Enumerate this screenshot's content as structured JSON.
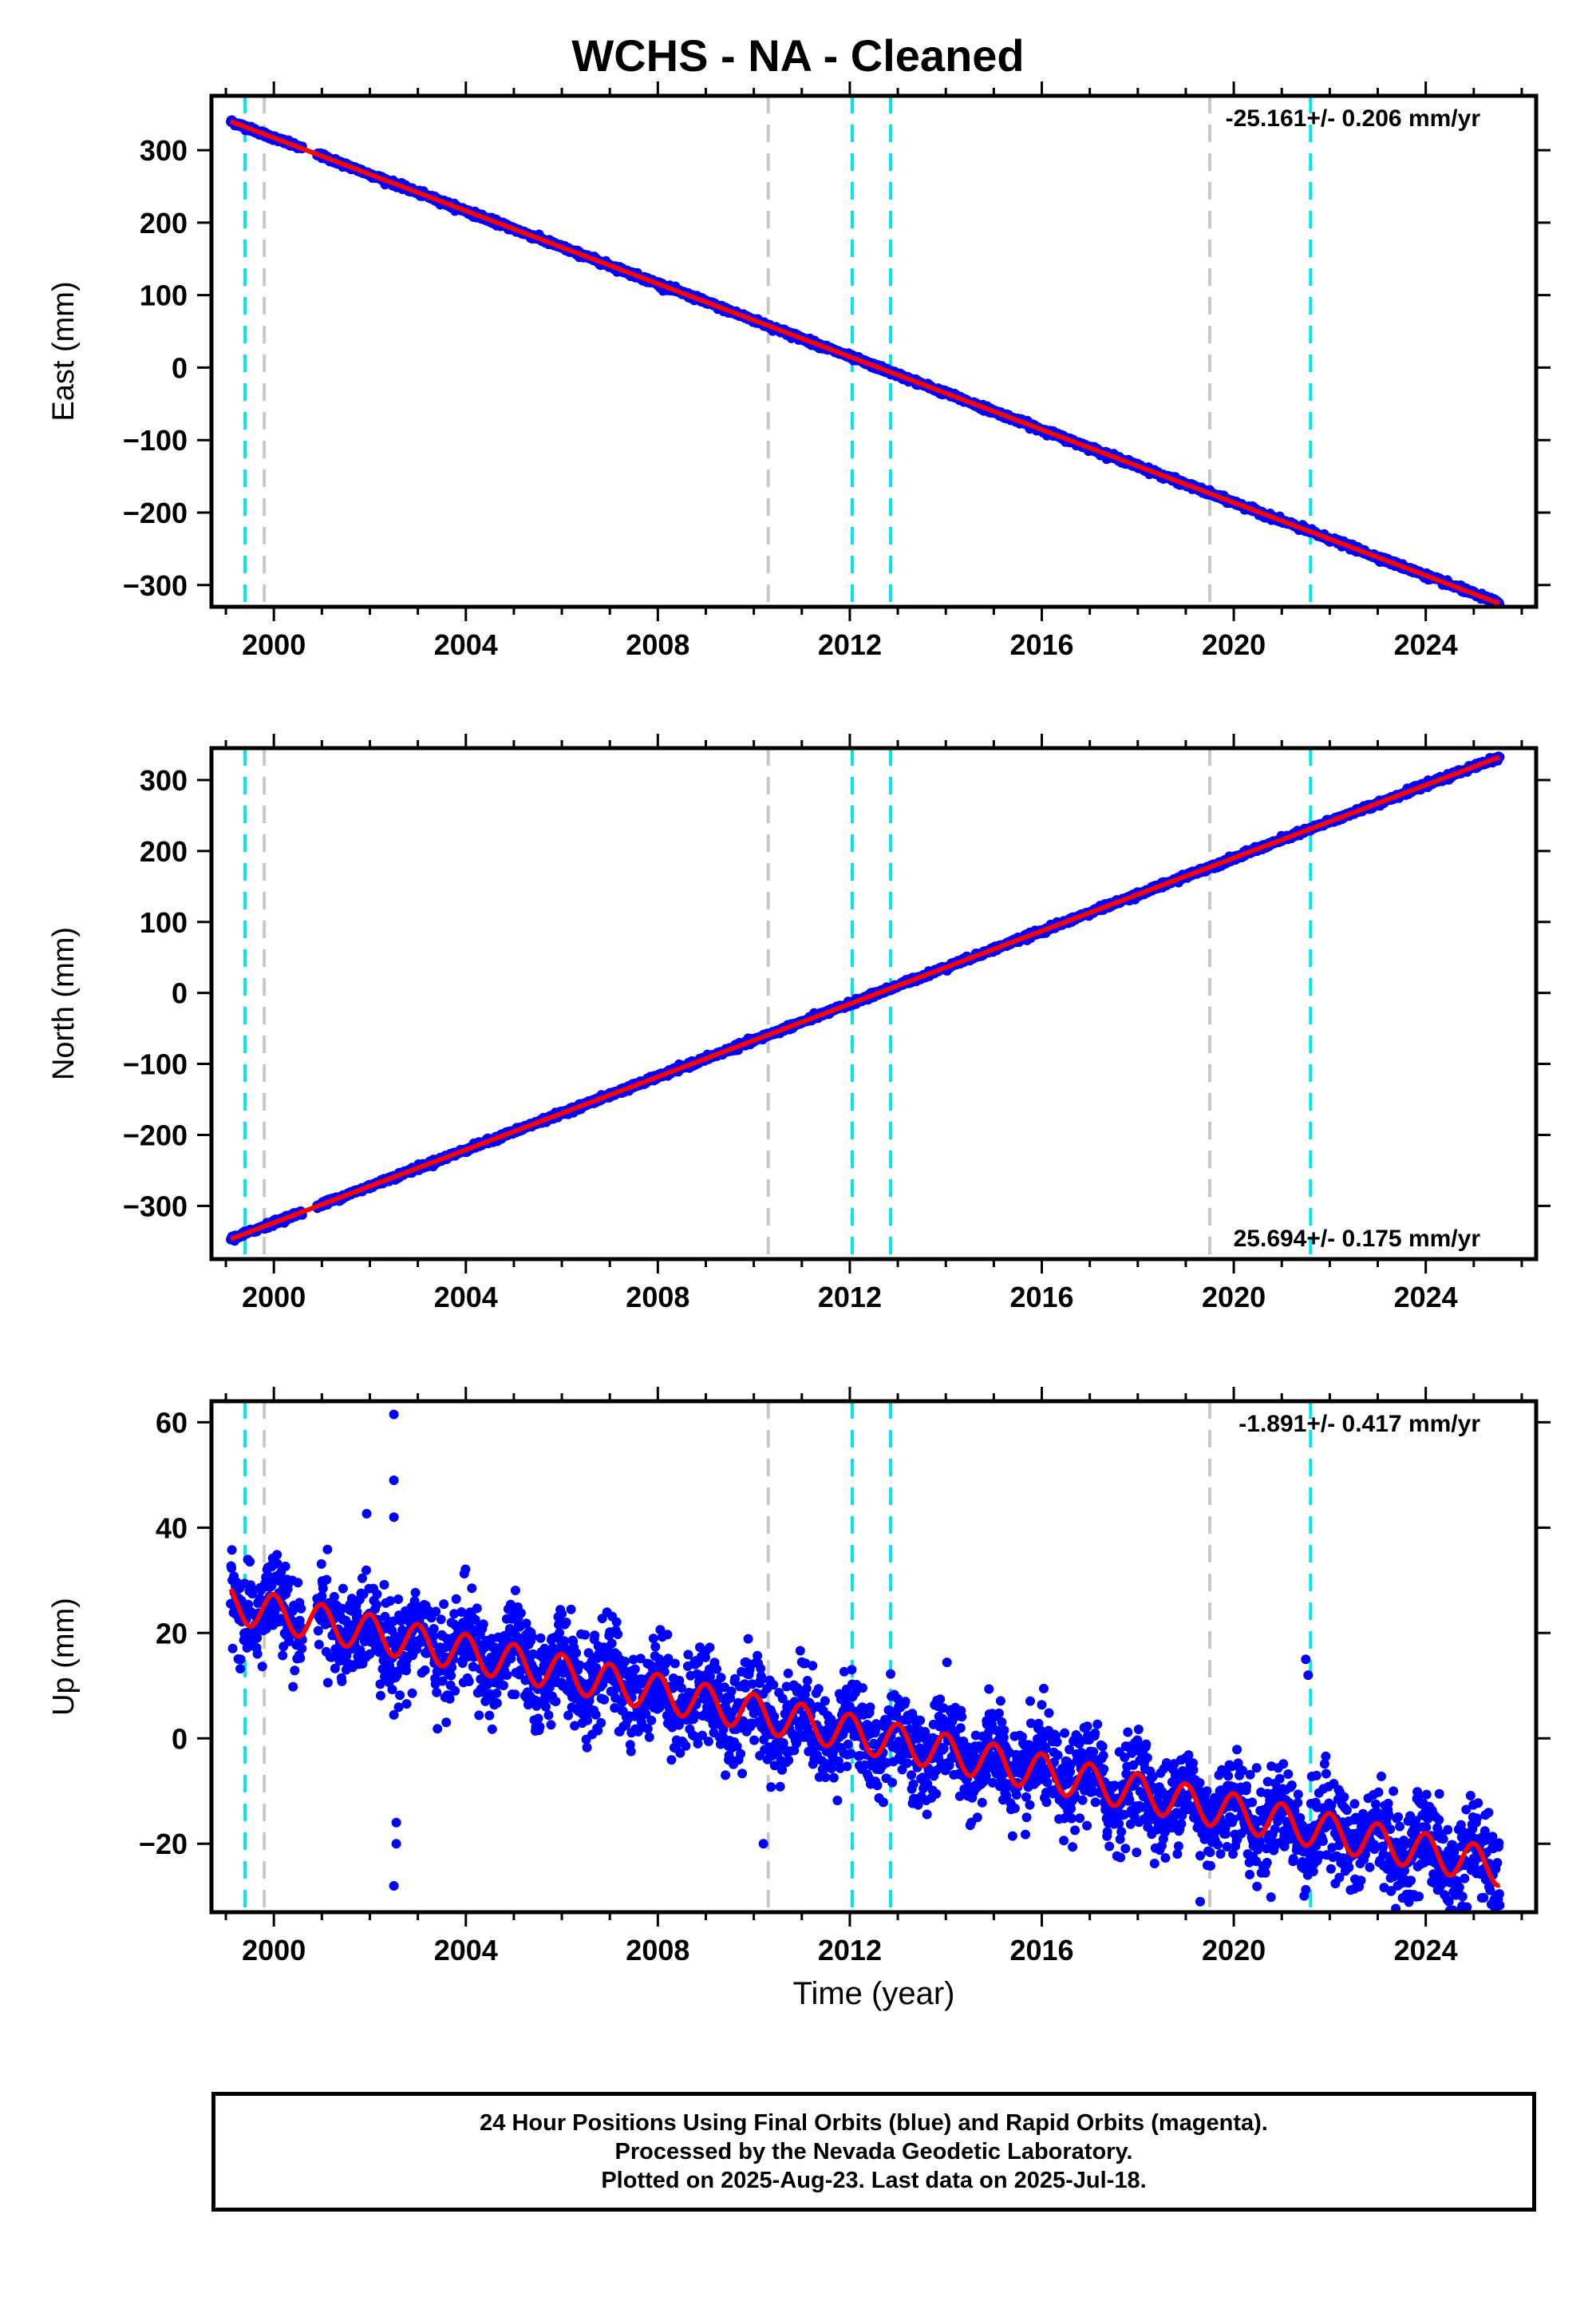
{
  "title": "WCHS  - NA - Cleaned",
  "xlabel": "Time (year)",
  "footer": {
    "line1": "24 Hour Positions Using Final Orbits (blue) and Rapid Orbits (magenta).",
    "line2": "Processed by the Nevada Geodetic Laboratory.",
    "line3": "Plotted on 2025-Aug-23. Last data on 2025-Jul-18."
  },
  "colors": {
    "data": "#0000ff",
    "model": "#ff0000",
    "equipment_change": "#c8c8c8",
    "earthquake": "#00e5ee"
  },
  "chart_data": [
    {
      "type": "scatter",
      "name": "east",
      "ylabel": "East (mm)",
      "rate_label": "-25.161+/- 0.206 mm/yr",
      "rate_position": "top-right",
      "xlim": [
        1998.7,
        2026.3
      ],
      "ylim": [
        -330,
        375
      ],
      "xticks": [
        2000,
        2004,
        2008,
        2012,
        2016,
        2020,
        2024
      ],
      "yticks": [
        -300,
        -200,
        -100,
        0,
        100,
        200,
        300
      ],
      "ytick_labels": [
        "−300",
        "−200",
        "−100",
        "0",
        "100",
        "200",
        "300"
      ],
      "t0": 2012.6,
      "y0": 0,
      "rate": -25.161,
      "annual_amp": 0.0,
      "noise": 1.8,
      "spikes": [],
      "start": 1999.1,
      "end": 2025.55,
      "equipment_changes": [
        1999.8,
        2010.3,
        2019.5
      ],
      "earthquakes": [
        1999.4,
        2012.05,
        2012.85,
        2021.6
      ],
      "grid": false
    },
    {
      "type": "scatter",
      "name": "north",
      "ylabel": "North (mm)",
      "rate_label": "25.694+/- 0.175 mm/yr",
      "rate_position": "bottom-right",
      "xlim": [
        1998.7,
        2026.3
      ],
      "ylim": [
        -375,
        345
      ],
      "xticks": [
        2000,
        2004,
        2008,
        2012,
        2016,
        2020,
        2024
      ],
      "yticks": [
        -300,
        -200,
        -100,
        0,
        100,
        200,
        300
      ],
      "ytick_labels": [
        "−300",
        "−200",
        "−100",
        "0",
        "100",
        "200",
        "300"
      ],
      "t0": 2012.6,
      "y0": 0,
      "rate": 25.694,
      "annual_amp": 0.0,
      "noise": 1.8,
      "spikes": [],
      "start": 1999.1,
      "end": 2025.55,
      "equipment_changes": [
        1999.8,
        2010.3,
        2019.5
      ],
      "earthquakes": [
        1999.4,
        2012.05,
        2012.85,
        2021.6
      ],
      "grid": false
    },
    {
      "type": "scatter",
      "name": "up",
      "ylabel": "Up (mm)",
      "rate_label": "-1.891+/- 0.417 mm/yr",
      "rate_position": "top-right",
      "xlim": [
        1998.7,
        2026.3
      ],
      "ylim": [
        -33,
        64
      ],
      "xticks": [
        2000,
        2004,
        2008,
        2012,
        2016,
        2020,
        2024
      ],
      "yticks": [
        -20,
        0,
        20,
        40,
        60
      ],
      "ytick_labels": [
        "−20",
        "0",
        "20",
        "40",
        "60"
      ],
      "t0": 2012.6,
      "y0": 0,
      "rate": -1.891,
      "annual_amp": 3.5,
      "noise": 4.5,
      "spikes": [
        [
          2002.5,
          61.5
        ],
        [
          2002.5,
          49
        ],
        [
          2002.5,
          42
        ],
        [
          2002.55,
          -16
        ],
        [
          2002.55,
          -20
        ],
        [
          2002.5,
          -28
        ],
        [
          2021.5,
          15
        ],
        [
          2021.55,
          12
        ],
        [
          2010.2,
          -20
        ],
        [
          2019.3,
          -31
        ]
      ],
      "start": 1999.1,
      "end": 2025.55,
      "equipment_changes": [
        1999.8,
        2010.3,
        2019.5
      ],
      "earthquakes": [
        1999.4,
        2012.05,
        2012.85,
        2021.6
      ],
      "grid": false
    }
  ]
}
